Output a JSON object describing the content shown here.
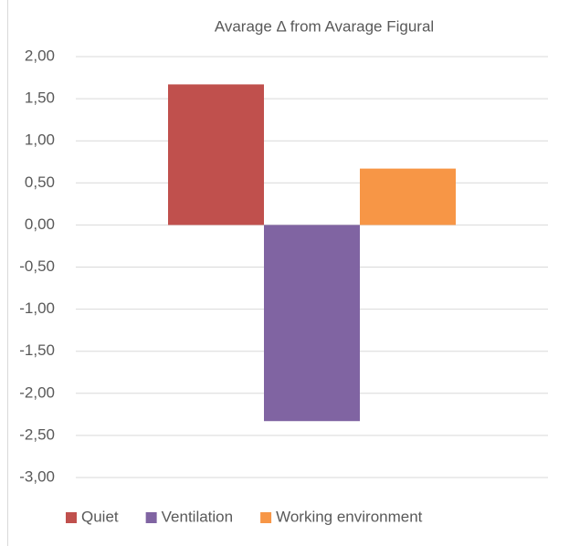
{
  "chart_data": {
    "type": "bar",
    "title": "Avarage Δ from Avarage Figural",
    "series": [
      {
        "name": "Quiet",
        "color": "#c0504d",
        "values": [
          1.67
        ]
      },
      {
        "name": "Ventilation",
        "color": "#8064a2",
        "values": [
          -2.33
        ]
      },
      {
        "name": "Working environment",
        "color": "#f79646",
        "values": [
          0.67
        ]
      }
    ],
    "ylim": [
      -3,
      2
    ],
    "yticks": [
      {
        "value": 2,
        "label": "2,00"
      },
      {
        "value": 1.5,
        "label": "1,50"
      },
      {
        "value": 1,
        "label": "1,00"
      },
      {
        "value": 0.5,
        "label": "0,50"
      },
      {
        "value": 0,
        "label": "0,00"
      },
      {
        "value": -0.5,
        "label": "-0,50"
      },
      {
        "value": -1,
        "label": "-1,00"
      },
      {
        "value": -1.5,
        "label": "-1,50"
      },
      {
        "value": -2,
        "label": "-2,00"
      },
      {
        "value": -2.5,
        "label": "-2,50"
      },
      {
        "value": -3,
        "label": "-3,00"
      }
    ],
    "grid": true,
    "legend": "bottom"
  }
}
